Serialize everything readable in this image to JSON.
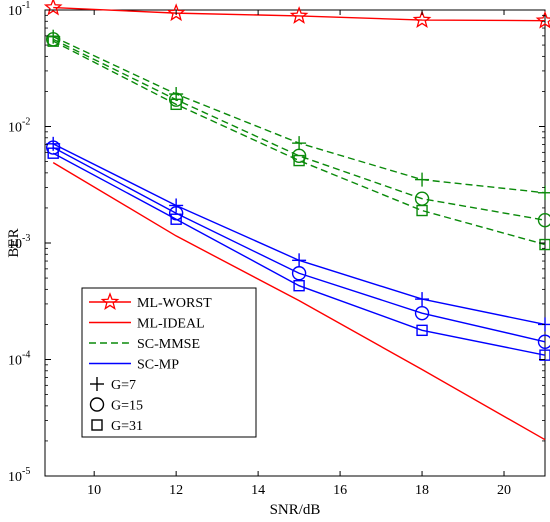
{
  "chart_data": {
    "type": "line",
    "xlabel": "SNR/dB",
    "ylabel": "BER",
    "xlim": [
      8.8,
      21
    ],
    "ylim": [
      1e-05,
      0.1
    ],
    "y_scale": "log",
    "x_ticks": [
      10,
      12,
      14,
      16,
      18,
      20
    ],
    "y_ticks": [
      {
        "value": 0.1,
        "base": "10",
        "exp": "-1"
      },
      {
        "value": 0.01,
        "base": "10",
        "exp": "-2"
      },
      {
        "value": 0.001,
        "base": "10",
        "exp": "-3"
      },
      {
        "value": 0.0001,
        "base": "10",
        "exp": "-4"
      },
      {
        "value": 1e-05,
        "base": "10",
        "exp": "-5"
      }
    ],
    "grid": false,
    "legend_position": "bottom-left",
    "colors": {
      "red": "#ff0000",
      "green": "#0a8a0a",
      "blue": "#0000ff"
    },
    "series": [
      {
        "name": "ML-WORST",
        "color": "#ff0000",
        "dash": false,
        "marker": "star",
        "x": [
          9,
          12,
          15,
          18,
          21
        ],
        "y": [
          0.105,
          0.094,
          0.089,
          0.082,
          0.081
        ]
      },
      {
        "name": "ML-IDEAL",
        "color": "#ff0000",
        "dash": false,
        "marker": "none",
        "x": [
          9,
          12,
          15,
          18,
          21
        ],
        "y": [
          0.0049,
          0.00115,
          0.00032,
          8.2e-05,
          2.05e-05
        ]
      },
      {
        "name": "SC-MMSE",
        "legend": true,
        "color": "#0a8a0a",
        "dash": true,
        "marker": "plus",
        "x": [
          9,
          12,
          15,
          18,
          21
        ],
        "y": [
          0.059,
          0.019,
          0.0072,
          0.0035,
          0.0027
        ]
      },
      {
        "legend": false,
        "color": "#0a8a0a",
        "dash": true,
        "marker": "circle",
        "x": [
          9,
          12,
          15,
          18,
          21
        ],
        "y": [
          0.056,
          0.017,
          0.0056,
          0.0024,
          0.00157
        ]
      },
      {
        "legend": false,
        "color": "#0a8a0a",
        "dash": true,
        "marker": "square",
        "x": [
          9,
          12,
          15,
          18,
          21
        ],
        "y": [
          0.054,
          0.0155,
          0.0051,
          0.0019,
          0.00097
        ]
      },
      {
        "name": "SC-MP",
        "color": "#0000ff",
        "dash": false,
        "marker": "plus",
        "x": [
          9,
          12,
          15,
          18,
          21
        ],
        "y": [
          0.0071,
          0.0021,
          0.00071,
          0.00033,
          0.0002
        ]
      },
      {
        "legend": false,
        "color": "#0000ff",
        "dash": false,
        "marker": "circle",
        "x": [
          9,
          12,
          15,
          18,
          21
        ],
        "y": [
          0.0066,
          0.0018,
          0.00055,
          0.00025,
          0.000142
        ]
      },
      {
        "legend": false,
        "color": "#0000ff",
        "dash": false,
        "marker": "square",
        "x": [
          9,
          12,
          15,
          18,
          21
        ],
        "y": [
          0.0059,
          0.0016,
          0.00043,
          0.000178,
          0.000109
        ]
      }
    ],
    "legend": [
      {
        "label": "ML-WORST",
        "color": "#ff0000",
        "dash": false,
        "marker": "star",
        "line": true
      },
      {
        "label": "ML-IDEAL",
        "color": "#ff0000",
        "dash": false,
        "marker": "none",
        "line": true
      },
      {
        "label": "SC-MMSE",
        "color": "#0a8a0a",
        "dash": true,
        "marker": "none",
        "line": true
      },
      {
        "label": "SC-MP",
        "color": "#0000ff",
        "dash": false,
        "marker": "none",
        "line": true
      },
      {
        "label": "G=7",
        "color": "#000000",
        "dash": false,
        "marker": "plus",
        "line": false
      },
      {
        "label": "G=15",
        "color": "#000000",
        "dash": false,
        "marker": "circle",
        "line": false
      },
      {
        "label": "G=31",
        "color": "#000000",
        "dash": false,
        "marker": "square",
        "line": false
      }
    ]
  }
}
